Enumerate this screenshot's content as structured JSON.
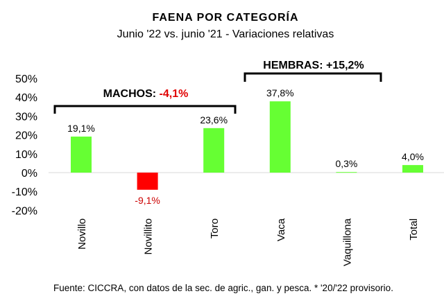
{
  "chart_data": {
    "type": "bar",
    "title": "FAENA POR CATEGORÍA",
    "subtitle": "Junio '22 vs. junio '21 - Variaciones relativas",
    "categories": [
      "Novillo",
      "Novillito",
      "Toro",
      "Vaca",
      "Vaquillona",
      "Total"
    ],
    "values": [
      19.1,
      -9.1,
      23.6,
      37.8,
      0.3,
      4.0
    ],
    "data_labels": [
      "19,1%",
      "-9,1%",
      "23,6%",
      "37,8%",
      "0,3%",
      "4,0%"
    ],
    "ylim": [
      -20,
      50
    ],
    "yticks": [
      50,
      40,
      30,
      20,
      10,
      0,
      -10,
      -20
    ],
    "ytick_labels": [
      "50%",
      "40%",
      "30%",
      "20%",
      "10%",
      "0%",
      "-10%",
      "-20%"
    ],
    "grid": false,
    "colors": {
      "positive": "#66ff33",
      "negative": "#ff0000",
      "negative_label": "#cc0000"
    },
    "groups": [
      {
        "label": "MACHOS: ",
        "value": "-4,1%",
        "value_color": "#e00000"
      },
      {
        "label": "HEMBRAS: ",
        "value": "+15,2%",
        "value_color": "#000000"
      }
    ],
    "source": "Fuente: CICCRA, con datos de la sec. de agric., gan. y pesca. * '20/'22 provisorio."
  }
}
